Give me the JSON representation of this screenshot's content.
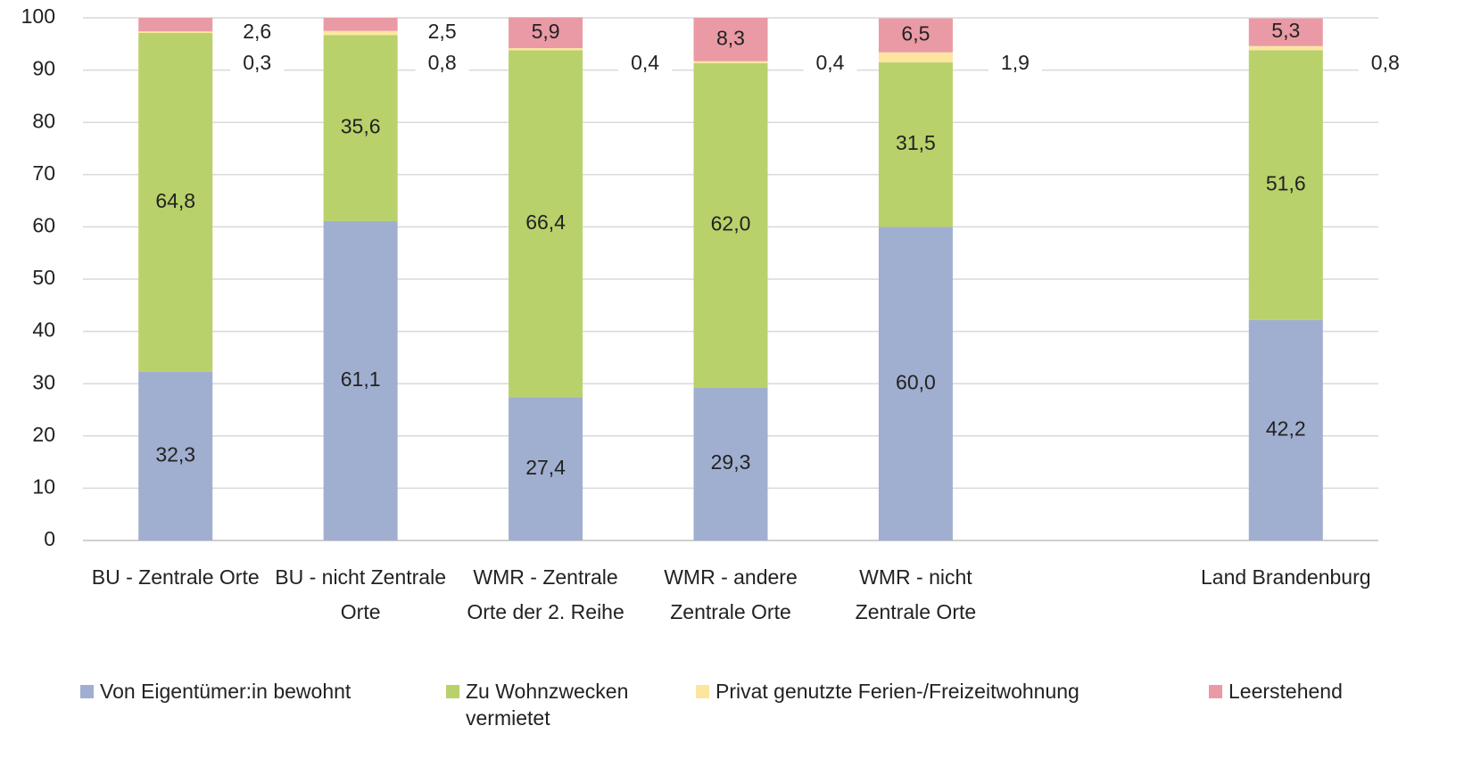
{
  "chart_data": {
    "type": "stacked_bar",
    "categories": [
      "BU - Zentrale Orte",
      "BU - nicht Zentrale Orte",
      "WMR - Zentrale Orte der 2. Reihe",
      "WMR  - andere Zentrale Orte",
      "WMR - nicht Zentrale Orte",
      null,
      "Land Brandenburg"
    ],
    "series": [
      {
        "name": "Von Eigentümer:in bewohnt",
        "color": "#a0afd0",
        "values": [
          32.3,
          61.1,
          27.4,
          29.3,
          60.0,
          null,
          42.2
        ],
        "value_labels": [
          "32,3",
          "61,1",
          "27,4",
          "29,3",
          "60,0",
          null,
          "42,2"
        ]
      },
      {
        "name": "Zu Wohnzwecken vermietet",
        "color": "#b8d16a",
        "values": [
          64.8,
          35.6,
          66.4,
          62.0,
          31.5,
          null,
          51.6
        ],
        "value_labels": [
          "64,8",
          "35,6",
          "66,4",
          "62,0",
          "31,5",
          null,
          "51,6"
        ]
      },
      {
        "name": "Privat genutzte Ferien-/Freizeitwohnung",
        "color": "#fde5a0",
        "values": [
          0.3,
          0.8,
          0.4,
          0.4,
          1.9,
          null,
          0.8
        ],
        "value_labels": [
          "0,3",
          "0,8",
          "0,4",
          "0,4",
          "1,9",
          null,
          "0,8"
        ]
      },
      {
        "name": "Leerstehend",
        "color": "#e99aa5",
        "values": [
          2.6,
          2.5,
          5.9,
          8.3,
          6.5,
          null,
          5.3
        ],
        "value_labels": [
          "2,6",
          "2,5",
          "5,9",
          "8,3",
          "6,5",
          null,
          "5,3"
        ]
      }
    ],
    "ylim": [
      0,
      100
    ],
    "yticks": [
      0,
      10,
      20,
      30,
      40,
      50,
      60,
      70,
      80,
      90,
      100
    ],
    "grid": true
  }
}
